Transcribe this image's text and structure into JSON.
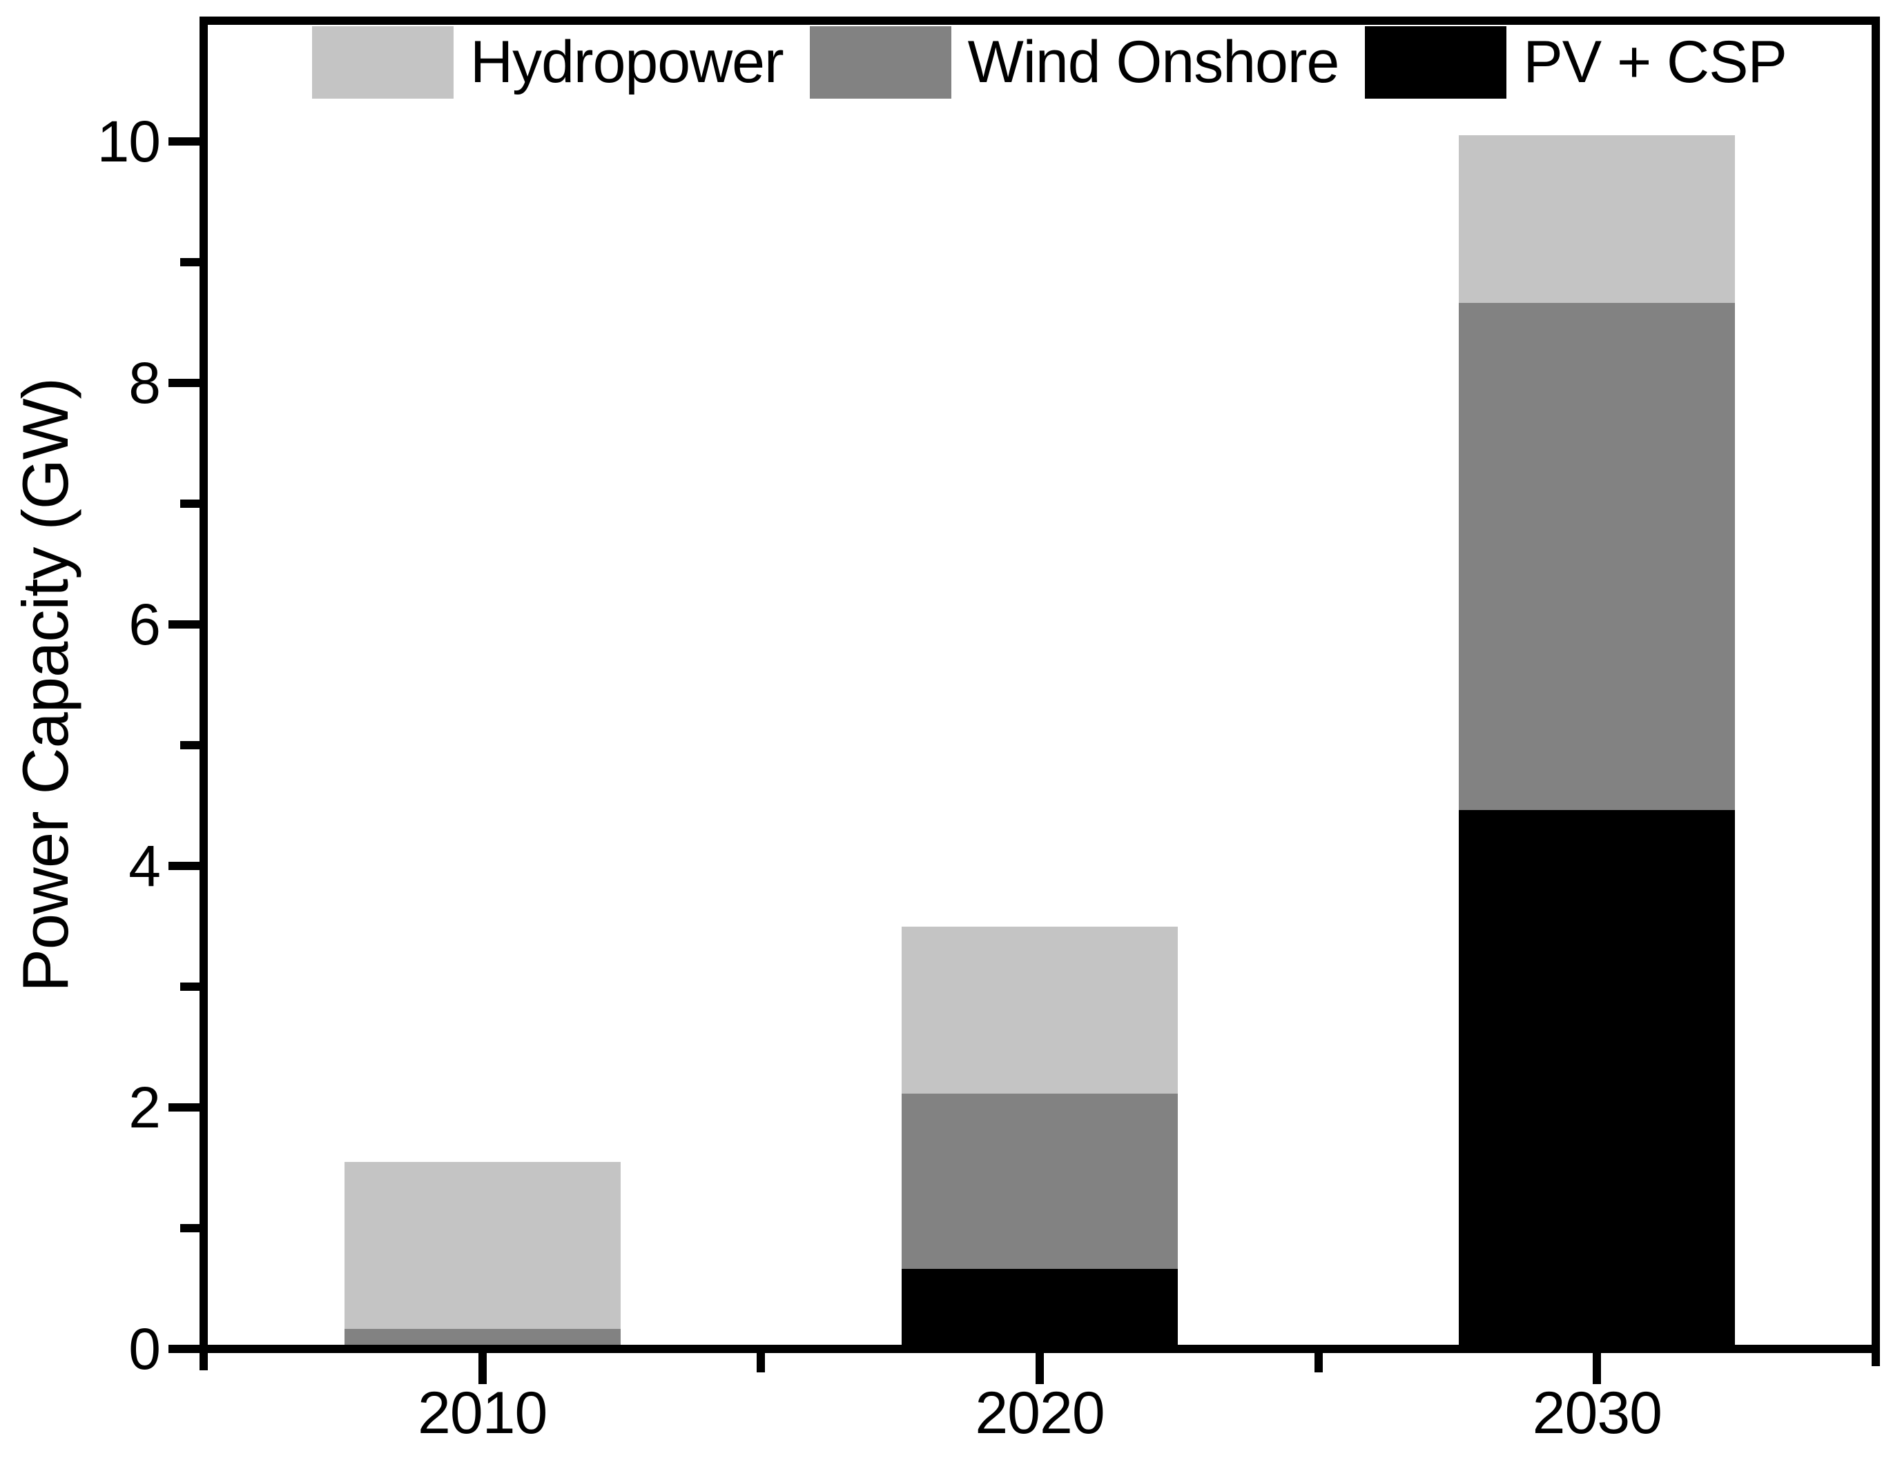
{
  "page": {
    "background": "#ffffff"
  },
  "chart_data": {
    "type": "bar",
    "stacked": true,
    "title": "",
    "xlabel": "",
    "ylabel": "Power Capacity (GW)",
    "categories": [
      "2010",
      "2020",
      "2030"
    ],
    "series": [
      {
        "name": "PV + CSP",
        "color": "#000000",
        "values": [
          0,
          0.7,
          4.5
        ]
      },
      {
        "name": "Wind Onshore",
        "color": "#828282",
        "values": [
          0.2,
          1.45,
          4.2
        ]
      },
      {
        "name": "Hydropower",
        "color": "#c4c4c4",
        "values": [
          1.35,
          1.35,
          1.35
        ]
      }
    ],
    "totals": [
      1.55,
      3.5,
      10.05
    ],
    "ylim": [
      0,
      11
    ],
    "yticks": [
      0,
      2,
      4,
      6,
      8,
      10
    ],
    "y_minor_step": 1,
    "grid": false,
    "legend": {
      "position": "top-inside",
      "entries": [
        {
          "label": "Hydropower",
          "color": "#c4c4c4"
        },
        {
          "label": "Wind Onshore",
          "color": "#828282"
        },
        {
          "label": "PV + CSP",
          "color": "#000000"
        }
      ]
    },
    "axis_color": "#000000",
    "text_color": "#000000"
  }
}
